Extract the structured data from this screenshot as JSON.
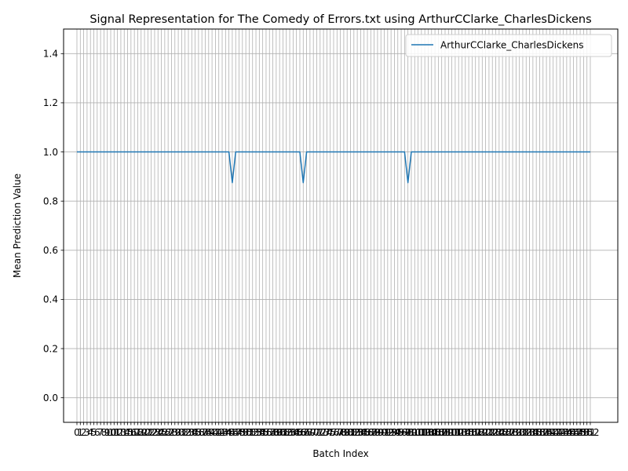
{
  "chart_data": {
    "type": "line",
    "title": "Signal Representation for The Comedy of Errors.txt using ArthurCClarke_CharlesDickens",
    "xlabel": "Batch Index",
    "ylabel": "Mean Prediction Value",
    "x_count": 153,
    "xlim": [
      0,
      152
    ],
    "ylim": [
      -0.1,
      1.5
    ],
    "yticks": [
      0.0,
      0.2,
      0.4,
      0.6,
      0.8,
      1.0,
      1.2,
      1.4
    ],
    "ytick_labels": [
      "0.0",
      "0.2",
      "0.4",
      "0.6",
      "0.8",
      "1.0",
      "1.2",
      "1.4"
    ],
    "grid": true,
    "legend_position": "top-right",
    "series": [
      {
        "name": "ArthurCClarke_CharlesDickens",
        "color": "#1f77b4",
        "base_value": 1.0,
        "dips": [
          {
            "x": 46,
            "y": 0.875
          },
          {
            "x": 67,
            "y": 0.875
          },
          {
            "x": 98,
            "y": 0.875
          }
        ]
      }
    ]
  }
}
